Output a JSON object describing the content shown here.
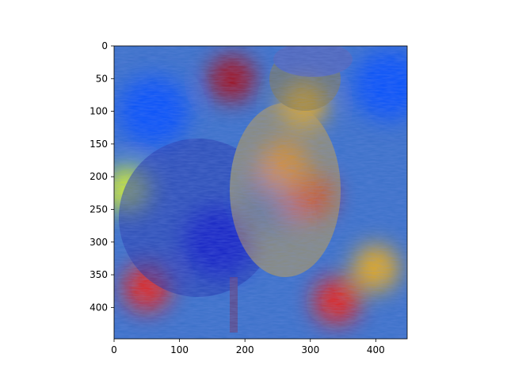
{
  "chart_data": {
    "type": "heatmap",
    "description_free": true,
    "title": "",
    "xlabel": "",
    "ylabel": "",
    "xlim": [
      0,
      448
    ],
    "ylim": [
      448,
      0
    ],
    "x_ticks": [
      0,
      100,
      200,
      300,
      400
    ],
    "y_ticks": [
      0,
      50,
      100,
      150,
      200,
      250,
      300,
      350,
      400
    ],
    "x_tick_labels": [
      "0",
      "100",
      "200",
      "300",
      "400"
    ],
    "y_tick_labels": [
      "0",
      "50",
      "100",
      "150",
      "200",
      "250",
      "300",
      "350",
      "400"
    ],
    "colormap": "jet",
    "overlay": "attention heatmap over photograph of a bird (duck-like, crested head)",
    "hot_regions": [
      {
        "x": 180,
        "y": 50,
        "level": 0.95
      },
      {
        "x": 300,
        "y": 230,
        "level": 0.9
      },
      {
        "x": 260,
        "y": 180,
        "level": 0.75
      },
      {
        "x": 50,
        "y": 370,
        "level": 0.85
      },
      {
        "x": 340,
        "y": 390,
        "level": 0.85
      },
      {
        "x": 400,
        "y": 340,
        "level": 0.7
      },
      {
        "x": 290,
        "y": 90,
        "level": 0.7
      },
      {
        "x": 20,
        "y": 220,
        "level": 0.6
      }
    ],
    "cool_regions": [
      {
        "x": 160,
        "y": 300,
        "level": 0.1
      },
      {
        "x": 250,
        "y": 230,
        "level": 0.2
      },
      {
        "x": 60,
        "y": 100,
        "level": 0.2
      },
      {
        "x": 420,
        "y": 60,
        "level": 0.2
      }
    ],
    "colors": {
      "axis": "#000000",
      "background": "#ffffff"
    }
  }
}
